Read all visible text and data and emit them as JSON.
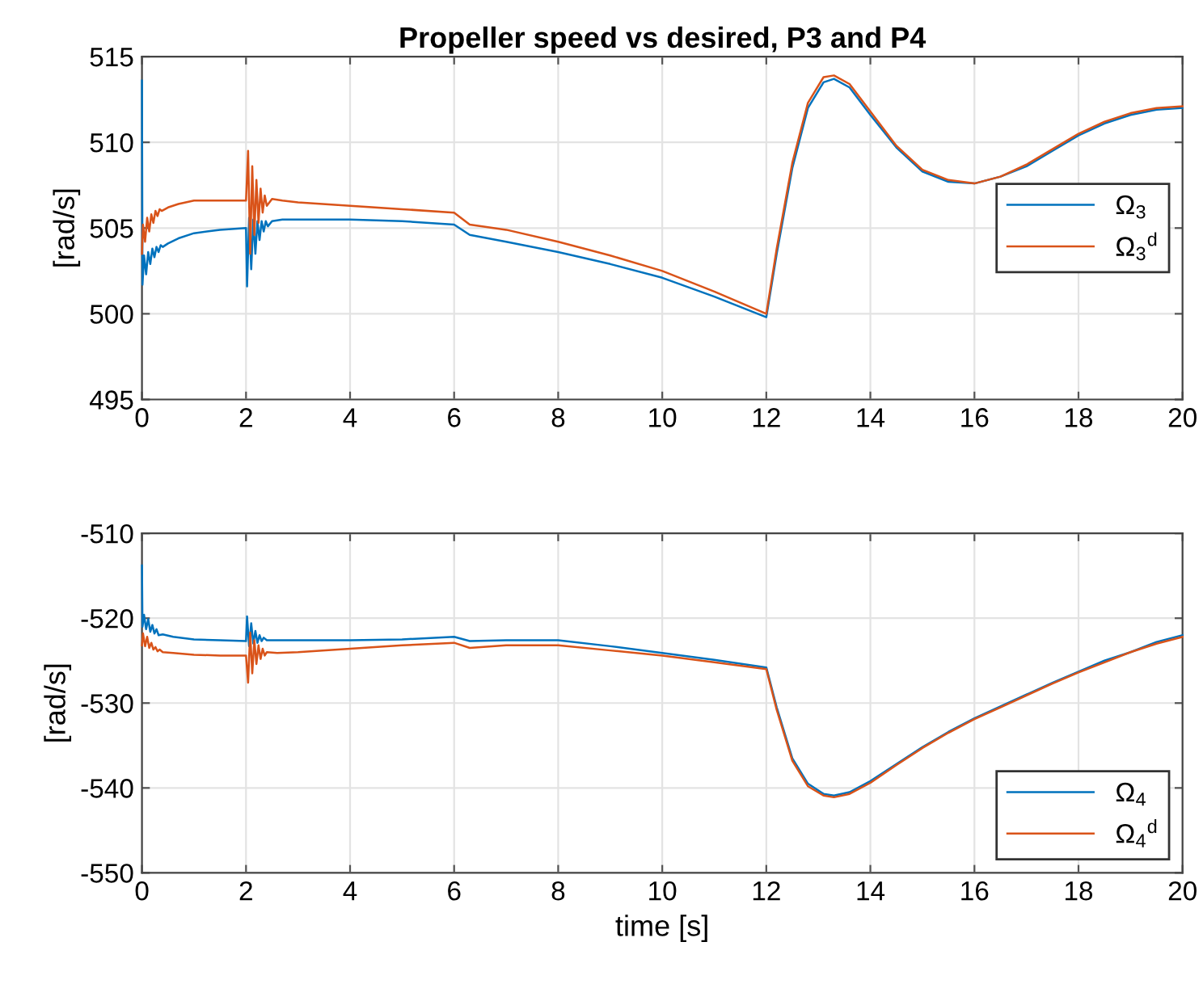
{
  "chart_data": [
    {
      "type": "line",
      "title": "Propeller speed vs desired, P3 and P4",
      "ylabel": "[rad/s]",
      "xlim": [
        0,
        20
      ],
      "xticks": [
        0,
        2,
        4,
        6,
        8,
        10,
        12,
        14,
        16,
        18,
        20
      ],
      "ylim": [
        495,
        515
      ],
      "yticks": [
        495,
        500,
        505,
        510,
        515
      ],
      "grid": true,
      "legend": "right",
      "series": [
        {
          "name": "Ω$_{3}$",
          "color": "#0072bd",
          "x": [
            0,
            0.01,
            0.04,
            0.08,
            0.12,
            0.16,
            0.2,
            0.24,
            0.28,
            0.32,
            0.36,
            0.4,
            0.5,
            0.7,
            1,
            1.5,
            2,
            2.02,
            2.06,
            2.1,
            2.14,
            2.18,
            2.22,
            2.26,
            2.3,
            2.34,
            2.38,
            2.42,
            2.5,
            2.7,
            3,
            4,
            5,
            6,
            6.3,
            7,
            8,
            9,
            10,
            11,
            12,
            12.2,
            12.5,
            12.8,
            13.1,
            13.3,
            13.6,
            14,
            14.5,
            15,
            15.5,
            16,
            16.5,
            17,
            17.5,
            18,
            18.5,
            19,
            19.5,
            20
          ],
          "values": [
            513.6,
            501.7,
            503.4,
            502.3,
            503.6,
            502.9,
            503.8,
            503.3,
            503.9,
            503.6,
            504.0,
            503.9,
            504.1,
            504.4,
            504.7,
            504.9,
            505.0,
            501.6,
            505.6,
            502.6,
            505.5,
            503.5,
            505.4,
            504.3,
            505.4,
            504.8,
            505.4,
            505.1,
            505.4,
            505.5,
            505.5,
            505.5,
            505.4,
            505.2,
            504.6,
            504.2,
            503.6,
            502.9,
            502.1,
            501.0,
            499.8,
            503.5,
            508.5,
            512.0,
            513.5,
            513.7,
            513.2,
            511.6,
            509.7,
            508.3,
            507.7,
            507.6,
            508.0,
            508.6,
            509.5,
            510.4,
            511.1,
            511.6,
            511.9,
            512.0
          ]
        },
        {
          "name": "Ω$_{3}$$^{d}$",
          "color": "#d95319",
          "x": [
            0,
            0.02,
            0.06,
            0.1,
            0.14,
            0.18,
            0.22,
            0.26,
            0.3,
            0.34,
            0.38,
            0.5,
            0.7,
            1,
            1.5,
            2,
            2.04,
            2.08,
            2.12,
            2.16,
            2.2,
            2.24,
            2.28,
            2.32,
            2.36,
            2.4,
            2.5,
            2.7,
            3,
            4,
            5,
            6,
            6.3,
            7,
            8,
            9,
            10,
            11,
            12,
            12.2,
            12.5,
            12.8,
            13.1,
            13.3,
            13.6,
            14,
            14.5,
            15,
            15.5,
            16,
            16.5,
            17,
            17.5,
            18,
            18.5,
            19,
            19.5,
            20
          ],
          "values": [
            503.5,
            505.2,
            504.2,
            505.6,
            504.8,
            505.8,
            505.3,
            506.0,
            505.7,
            506.1,
            506.0,
            506.2,
            506.4,
            506.6,
            506.6,
            506.6,
            509.5,
            503.5,
            508.6,
            504.6,
            507.8,
            505.3,
            507.3,
            505.9,
            506.9,
            506.3,
            506.7,
            506.6,
            506.5,
            506.3,
            506.1,
            505.9,
            505.2,
            504.9,
            504.2,
            503.4,
            502.5,
            501.3,
            500.0,
            503.8,
            508.8,
            512.3,
            513.8,
            513.9,
            513.4,
            511.8,
            509.8,
            508.4,
            507.8,
            507.6,
            508.0,
            508.7,
            509.6,
            510.5,
            511.2,
            511.7,
            512.0,
            512.1
          ]
        }
      ]
    },
    {
      "type": "line",
      "xlabel": "time [s]",
      "ylabel": "[rad/s]",
      "xlim": [
        0,
        20
      ],
      "xticks": [
        0,
        2,
        4,
        6,
        8,
        10,
        12,
        14,
        16,
        18,
        20
      ],
      "ylim": [
        -550,
        -510
      ],
      "yticks": [
        -550,
        -540,
        -530,
        -520,
        -510
      ],
      "grid": true,
      "legend": "bottom right",
      "series": [
        {
          "name": "Ω$_{4}$",
          "color": "#0072bd",
          "x": [
            0,
            0.01,
            0.04,
            0.08,
            0.12,
            0.16,
            0.2,
            0.24,
            0.28,
            0.32,
            0.4,
            0.6,
            1,
            1.5,
            2,
            2.02,
            2.06,
            2.1,
            2.14,
            2.18,
            2.22,
            2.26,
            2.3,
            2.34,
            2.4,
            2.6,
            3,
            4,
            5,
            6,
            6.3,
            7,
            8,
            9,
            10,
            11,
            12,
            12.2,
            12.5,
            12.8,
            13.1,
            13.3,
            13.6,
            14,
            14.5,
            15,
            15.5,
            16,
            16.5,
            17,
            17.5,
            18,
            18.5,
            19,
            19.5,
            20
          ],
          "values": [
            -513.8,
            -521.0,
            -519.6,
            -521.3,
            -520.1,
            -521.6,
            -520.8,
            -521.8,
            -521.3,
            -522.0,
            -521.9,
            -522.2,
            -522.5,
            -522.6,
            -522.7,
            -519.8,
            -523.3,
            -520.6,
            -523.0,
            -521.5,
            -522.9,
            -522.0,
            -522.7,
            -522.3,
            -522.6,
            -522.6,
            -522.6,
            -522.6,
            -522.5,
            -522.2,
            -522.7,
            -522.6,
            -522.6,
            -523.3,
            -524.1,
            -524.9,
            -525.8,
            -530.5,
            -536.5,
            -539.5,
            -540.7,
            -540.9,
            -540.5,
            -539.2,
            -537.2,
            -535.2,
            -533.4,
            -531.8,
            -530.4,
            -529.0,
            -527.6,
            -526.3,
            -525.0,
            -524.0,
            -522.8,
            -522.0
          ]
        },
        {
          "name": "Ω$_{4}$$^{d}$",
          "color": "#d95319",
          "x": [
            0,
            0.02,
            0.06,
            0.1,
            0.14,
            0.18,
            0.22,
            0.26,
            0.3,
            0.34,
            0.4,
            0.6,
            1,
            1.5,
            2,
            2.04,
            2.08,
            2.12,
            2.16,
            2.2,
            2.24,
            2.28,
            2.32,
            2.36,
            2.4,
            2.6,
            3,
            4,
            5,
            6,
            6.3,
            7,
            8,
            9,
            10,
            11,
            12,
            12.2,
            12.5,
            12.8,
            13.1,
            13.3,
            13.6,
            14,
            14.5,
            15,
            15.5,
            16,
            16.5,
            17,
            17.5,
            18,
            18.5,
            19,
            19.5,
            20
          ],
          "values": [
            -523.2,
            -521.8,
            -523.3,
            -522.2,
            -523.5,
            -522.9,
            -523.7,
            -523.4,
            -523.9,
            -523.7,
            -524.0,
            -524.1,
            -524.3,
            -524.4,
            -524.4,
            -527.6,
            -521.7,
            -526.5,
            -522.6,
            -525.4,
            -523.2,
            -524.8,
            -523.6,
            -524.4,
            -524.0,
            -524.1,
            -524.0,
            -523.6,
            -523.2,
            -522.9,
            -523.5,
            -523.2,
            -523.2,
            -523.8,
            -524.4,
            -525.2,
            -526.0,
            -530.8,
            -536.8,
            -539.8,
            -540.9,
            -541.1,
            -540.7,
            -539.4,
            -537.3,
            -535.3,
            -533.5,
            -531.9,
            -530.5,
            -529.1,
            -527.7,
            -526.4,
            -525.2,
            -524.0,
            -523.0,
            -522.2
          ]
        }
      ]
    }
  ]
}
